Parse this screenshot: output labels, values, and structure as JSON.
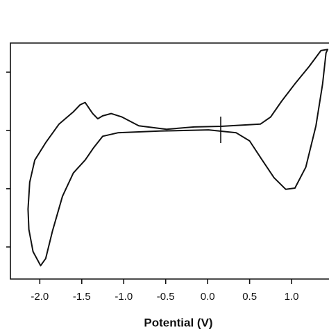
{
  "chart_data": {
    "type": "line",
    "x_label": "Potential (V)",
    "x": [
      0.63,
      0.16,
      -0.16,
      -0.49,
      -0.82,
      -1.02,
      -1.15,
      -1.25,
      -1.31,
      -1.37,
      -1.46,
      -1.52,
      -1.6,
      -1.77,
      -1.93,
      -2.06,
      -2.12,
      -2.14,
      -2.13,
      -2.08,
      -1.99,
      -1.93,
      -1.85,
      -1.73,
      -1.6,
      -1.46,
      -1.36,
      -1.25,
      -1.07,
      -0.57,
      0.01,
      0.34,
      0.5,
      0.65,
      0.79,
      0.93,
      1.04,
      1.17,
      1.29,
      1.37,
      1.41,
      1.43,
      1.35,
      1.21,
      1.04,
      0.88,
      0.75
    ],
    "values": [
      0.11,
      0.07,
      0.06,
      0.02,
      0.08,
      0.23,
      0.29,
      0.25,
      0.2,
      0.29,
      0.48,
      0.44,
      0.32,
      0.11,
      -0.21,
      -0.51,
      -0.89,
      -1.35,
      -1.7,
      -2.08,
      -2.32,
      -2.2,
      -1.73,
      -1.13,
      -0.73,
      -0.51,
      -0.3,
      -0.1,
      -0.04,
      -0.01,
      0.01,
      -0.04,
      -0.18,
      -0.51,
      -0.81,
      -1.01,
      -0.99,
      -0.63,
      0.08,
      0.8,
      1.33,
      1.39,
      1.37,
      1.1,
      0.8,
      0.5,
      0.23
    ],
    "color": "#111111",
    "xlim": [
      -2.35,
      1.45
    ],
    "xticks": [
      {
        "value": -2.0,
        "label": "-2.0"
      },
      {
        "value": -1.5,
        "label": "-1.5"
      },
      {
        "value": -1.0,
        "label": "-1.0"
      },
      {
        "value": -0.5,
        "label": "-0.5"
      },
      {
        "value": 0.0,
        "label": "0.0"
      },
      {
        "value": 0.5,
        "label": "0.5"
      },
      {
        "value": 1.0,
        "label": "1.0"
      }
    ],
    "ylim": [
      -2.55,
      1.5
    ],
    "yticks": [
      1,
      0,
      -1,
      -2
    ]
  }
}
